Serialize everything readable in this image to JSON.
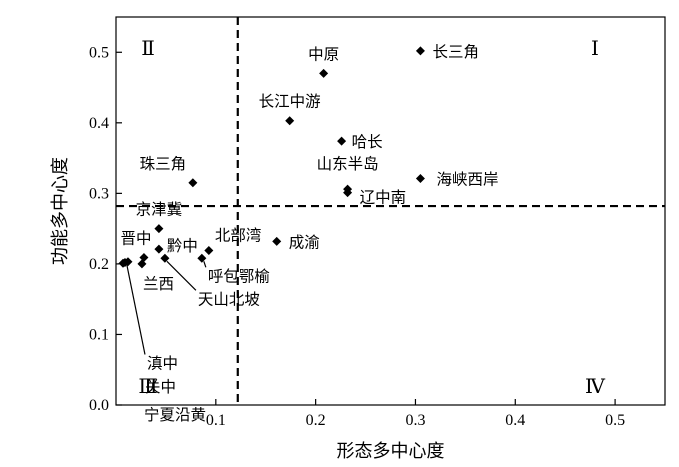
{
  "chart_data": {
    "type": "scatter",
    "xlabel": "形态多中心度",
    "ylabel": "功能多中心度",
    "xlim": [
      0,
      0.55
    ],
    "ylim": [
      0,
      0.55
    ],
    "xticks": [
      "0.1",
      "0.2",
      "0.3",
      "0.4",
      "0.5"
    ],
    "yticks": [
      "0.0",
      "0.1",
      "0.2",
      "0.3",
      "0.4",
      "0.5"
    ],
    "xtick_values": [
      0.1,
      0.2,
      0.3,
      0.4,
      0.5
    ],
    "ytick_values": [
      0.0,
      0.1,
      0.2,
      0.3,
      0.4,
      0.5
    ],
    "grid": false,
    "reference_lines": {
      "x": 0.122,
      "y": 0.282,
      "style": "dashed"
    },
    "quadrants": [
      "Ⅰ",
      "Ⅱ",
      "Ⅲ",
      "Ⅳ"
    ],
    "points": [
      {
        "name": "长三角",
        "x": 0.305,
        "y": 0.502
      },
      {
        "name": "中原",
        "x": 0.208,
        "y": 0.47
      },
      {
        "name": "长江中游",
        "x": 0.174,
        "y": 0.403
      },
      {
        "name": "哈长",
        "x": 0.226,
        "y": 0.374
      },
      {
        "name": "海峡西岸",
        "x": 0.305,
        "y": 0.321
      },
      {
        "name": "珠三角",
        "x": 0.077,
        "y": 0.315
      },
      {
        "name": "山东半岛",
        "x": 0.232,
        "y": 0.306
      },
      {
        "name": "辽中南",
        "x": 0.232,
        "y": 0.301
      },
      {
        "name": "京津冀",
        "x": 0.043,
        "y": 0.25
      },
      {
        "name": "成渝",
        "x": 0.161,
        "y": 0.232
      },
      {
        "name": "北部湾",
        "x": 0.093,
        "y": 0.219
      },
      {
        "name": "黔中",
        "x": 0.043,
        "y": 0.221
      },
      {
        "name": "晋中",
        "x": 0.028,
        "y": 0.209
      },
      {
        "name": "呼包鄂榆",
        "x": 0.086,
        "y": 0.208
      },
      {
        "name": "天山北坡",
        "x": 0.049,
        "y": 0.208
      },
      {
        "name": "兰西",
        "x": 0.026,
        "y": 0.2
      },
      {
        "name": "滇中",
        "x": 0.009,
        "y": 0.202
      },
      {
        "name": "关中",
        "x": 0.012,
        "y": 0.203
      },
      {
        "name": "宁夏沿黄",
        "x": 0.007,
        "y": 0.201
      }
    ]
  }
}
